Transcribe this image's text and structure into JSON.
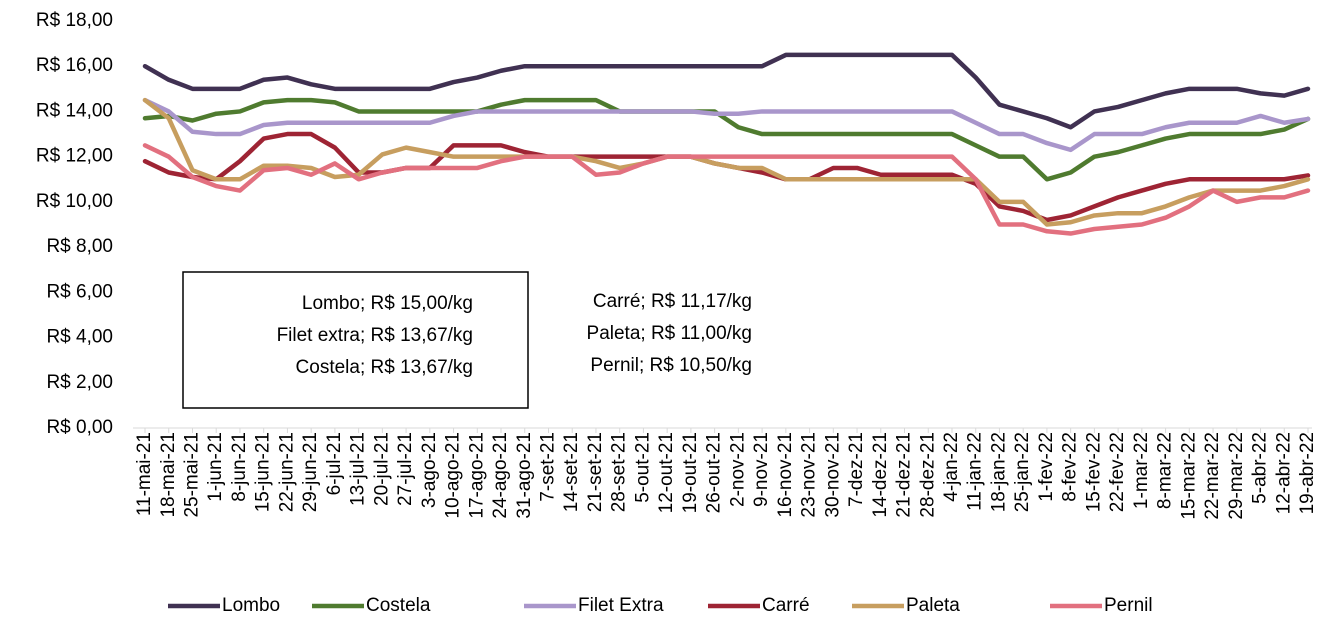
{
  "chart_data": {
    "type": "line",
    "categories": [
      "11-mai-21",
      "18-mai-21",
      "25-mai-21",
      "1-jun-21",
      "8-jun-21",
      "15-jun-21",
      "22-jun-21",
      "29-jun-21",
      "6-jul-21",
      "13-jul-21",
      "20-jul-21",
      "27-jul-21",
      "3-ago-21",
      "10-ago-21",
      "17-ago-21",
      "24-ago-21",
      "31-ago-21",
      "7-set-21",
      "14-set-21",
      "21-set-21",
      "28-set-21",
      "5-out-21",
      "12-out-21",
      "19-out-21",
      "26-out-21",
      "2-nov-21",
      "9-nov-21",
      "16-nov-21",
      "23-nov-21",
      "30-nov-21",
      "7-dez-21",
      "14-dez-21",
      "21-dez-21",
      "28-dez-21",
      "4-jan-22",
      "11-jan-22",
      "18-jan-22",
      "25-jan-22",
      "1-fev-22",
      "8-fev-22",
      "15-fev-22",
      "22-fev-22",
      "1-mar-22",
      "8-mar-22",
      "15-mar-22",
      "22-mar-22",
      "29-mar-22",
      "5-abr-22",
      "12-abr-22",
      "19-abr-22"
    ],
    "series": [
      {
        "name": "Lombo",
        "color": "#403152",
        "values": [
          16,
          15.4,
          15,
          15,
          15,
          15.4,
          15.5,
          15.2,
          15,
          15,
          15,
          15,
          15,
          15.3,
          15.5,
          15.8,
          16,
          16,
          16,
          16,
          16,
          16,
          16,
          16,
          16,
          16,
          16,
          16.5,
          16.5,
          16.5,
          16.5,
          16.5,
          16.5,
          16.5,
          16.5,
          15.5,
          14.3,
          14,
          13.7,
          13.3,
          14,
          14.2,
          14.5,
          14.8,
          15,
          15,
          15,
          14.8,
          14.7,
          15
        ]
      },
      {
        "name": "Costela",
        "color": "#4f7b2f",
        "values": [
          13.7,
          13.8,
          13.6,
          13.9,
          14,
          14.4,
          14.5,
          14.5,
          14.4,
          14,
          14,
          14,
          14,
          14,
          14,
          14.3,
          14.5,
          14.5,
          14.5,
          14.5,
          14,
          14,
          14,
          14,
          14,
          13.3,
          13,
          13,
          13,
          13,
          13,
          13,
          13,
          13,
          13,
          12.5,
          12,
          12,
          11,
          11.3,
          12,
          12.2,
          12.5,
          12.8,
          13,
          13,
          13,
          13,
          13.2,
          13.67
        ]
      },
      {
        "name": "Filet Extra",
        "color": "#a996cb",
        "values": [
          14.5,
          14,
          13.1,
          13,
          13,
          13.4,
          13.5,
          13.5,
          13.5,
          13.5,
          13.5,
          13.5,
          13.5,
          13.8,
          14,
          14,
          14,
          14,
          14,
          14,
          14,
          14,
          14,
          14,
          13.9,
          13.9,
          14,
          14,
          14,
          14,
          14,
          14,
          14,
          14,
          14,
          13.5,
          13,
          13,
          12.6,
          12.3,
          13,
          13,
          13,
          13.3,
          13.5,
          13.5,
          13.5,
          13.8,
          13.5,
          13.67
        ]
      },
      {
        "name": "Carré",
        "color": "#9e2434",
        "values": [
          11.8,
          11.3,
          11.1,
          11,
          11.8,
          12.8,
          13,
          13,
          12.4,
          11.3,
          11.3,
          11.5,
          11.5,
          12.5,
          12.5,
          12.5,
          12.2,
          12,
          12,
          12,
          12,
          12,
          12,
          12,
          11.7,
          11.5,
          11.3,
          11,
          11,
          11.5,
          11.5,
          11.2,
          11.2,
          11.2,
          11.2,
          10.8,
          9.8,
          9.6,
          9.2,
          9.4,
          9.8,
          10.2,
          10.5,
          10.8,
          11,
          11,
          11,
          11,
          11,
          11.17
        ]
      },
      {
        "name": "Paleta",
        "color": "#c79e5f",
        "values": [
          14.5,
          13.7,
          11.4,
          11,
          11,
          11.6,
          11.6,
          11.5,
          11.1,
          11.2,
          12.1,
          12.4,
          12.2,
          12,
          12,
          12,
          12,
          12,
          12,
          11.8,
          11.5,
          11.7,
          12,
          12,
          11.7,
          11.5,
          11.5,
          11,
          11,
          11,
          11,
          11,
          11,
          11,
          11,
          11,
          10,
          10,
          9,
          9.1,
          9.4,
          9.5,
          9.5,
          9.8,
          10.2,
          10.5,
          10.5,
          10.5,
          10.7,
          11
        ]
      },
      {
        "name": "Pernil",
        "color": "#e2707f",
        "values": [
          12.5,
          12,
          11.1,
          10.7,
          10.5,
          11.4,
          11.5,
          11.2,
          11.7,
          11,
          11.3,
          11.5,
          11.5,
          11.5,
          11.5,
          11.8,
          12,
          12,
          12,
          11.2,
          11.3,
          11.7,
          12,
          12,
          12,
          12,
          12,
          12,
          12,
          12,
          12,
          12,
          12,
          12,
          12,
          11,
          9,
          9,
          8.7,
          8.6,
          8.8,
          8.9,
          9,
          9.3,
          9.8,
          10.5,
          10,
          10.2,
          10.2,
          10.5
        ]
      }
    ],
    "ylim": [
      0,
      18
    ],
    "yticks": [
      {
        "value": 0,
        "label": "R$ 0,00"
      },
      {
        "value": 2,
        "label": "R$ 2,00"
      },
      {
        "value": 4,
        "label": "R$ 4,00"
      },
      {
        "value": 6,
        "label": "R$ 6,00"
      },
      {
        "value": 8,
        "label": "R$ 8,00"
      },
      {
        "value": 10,
        "label": "R$ 10,00"
      },
      {
        "value": 12,
        "label": "R$ 12,00"
      },
      {
        "value": 14,
        "label": "R$ 14,00"
      },
      {
        "value": 16,
        "label": "R$ 16,00"
      },
      {
        "value": 18,
        "label": "R$ 18,00"
      }
    ],
    "annotations": [
      "Lombo; R$ 15,00/kg",
      "Filet extra; R$ 13,67/kg",
      "Costela; R$ 13,67/kg",
      "Carré; R$ 11,17/kg",
      "Paleta; R$ 11,00/kg",
      "Pernil; R$ 10,50/kg"
    ],
    "legend": "bottom"
  }
}
